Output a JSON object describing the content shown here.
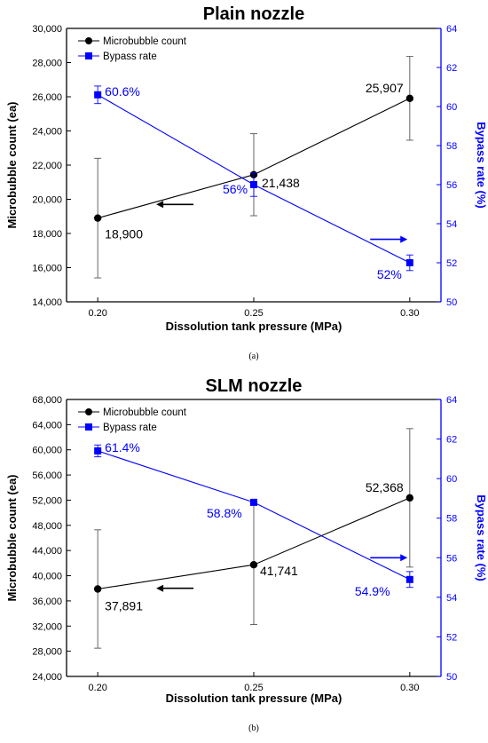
{
  "chart_data": [
    {
      "type": "line",
      "title": "Plain nozzle",
      "caption": "(a)",
      "xlabel": "Dissolution tank pressure (MPa)",
      "ylabel": "Microbubble count (ea)",
      "y2label": "Bypass rate (%)",
      "x": [
        0.2,
        0.25,
        0.3
      ],
      "xticks": [
        "0.20",
        "0.25",
        "0.30"
      ],
      "xlim": [
        0.19,
        0.31
      ],
      "ylim": [
        14000,
        30000
      ],
      "yticks": [
        "14,000",
        "16,000",
        "18,000",
        "20,000",
        "22,000",
        "24,000",
        "26,000",
        "28,000",
        "30,000"
      ],
      "y2lim": [
        50,
        64
      ],
      "y2ticks": [
        "50",
        "52",
        "54",
        "56",
        "58",
        "60",
        "62",
        "64"
      ],
      "grid": false,
      "legend_position": "top-left",
      "series": [
        {
          "name": "Microbubble count",
          "axis": "left",
          "color": "#000000",
          "marker": "circle",
          "values": [
            18900,
            21438,
            25907
          ],
          "err": [
            3500,
            2400,
            2450
          ],
          "labels": [
            "18,900",
            "21,438",
            "25,907"
          ]
        },
        {
          "name": "Bypass rate",
          "axis": "right",
          "color": "#0000ff",
          "marker": "square",
          "values": [
            60.6,
            56.0,
            52.0
          ],
          "err": [
            0.45,
            0.6,
            0.4
          ],
          "labels": [
            "60.6%",
            "56%",
            "52%"
          ]
        }
      ],
      "arrows": [
        "left-series-axis",
        "right-series-axis"
      ]
    },
    {
      "type": "line",
      "title": "SLM nozzle",
      "caption": "(b)",
      "xlabel": "Dissolution tank pressure (MPa)",
      "ylabel": "Microbubble count (ea)",
      "y2label": "Bypass rate (%)",
      "x": [
        0.2,
        0.25,
        0.3
      ],
      "xticks": [
        "0.20",
        "0.25",
        "0.30"
      ],
      "xlim": [
        0.19,
        0.31
      ],
      "ylim": [
        24000,
        68000
      ],
      "yticks": [
        "24,000",
        "28,000",
        "32,000",
        "36,000",
        "40,000",
        "44,000",
        "48,000",
        "52,000",
        "56,000",
        "60,000",
        "64,000",
        "68,000"
      ],
      "y2lim": [
        50,
        64
      ],
      "y2ticks": [
        "50",
        "52",
        "54",
        "56",
        "58",
        "60",
        "62",
        "64"
      ],
      "grid": false,
      "legend_position": "top-left",
      "series": [
        {
          "name": "Microbubble count",
          "axis": "left",
          "color": "#000000",
          "marker": "circle",
          "values": [
            37891,
            41741,
            52368
          ],
          "err": [
            9400,
            9500,
            11000
          ],
          "labels": [
            "37,891",
            "41,741",
            "52,368"
          ]
        },
        {
          "name": "Bypass rate",
          "axis": "right",
          "color": "#0000ff",
          "marker": "square",
          "values": [
            61.4,
            58.8,
            54.9
          ],
          "err": [
            0.3,
            0,
            0.4
          ],
          "labels": [
            "61.4%",
            "58.8%",
            "54.9%"
          ]
        }
      ],
      "arrows": [
        "left-series-axis",
        "right-series-axis"
      ]
    }
  ]
}
